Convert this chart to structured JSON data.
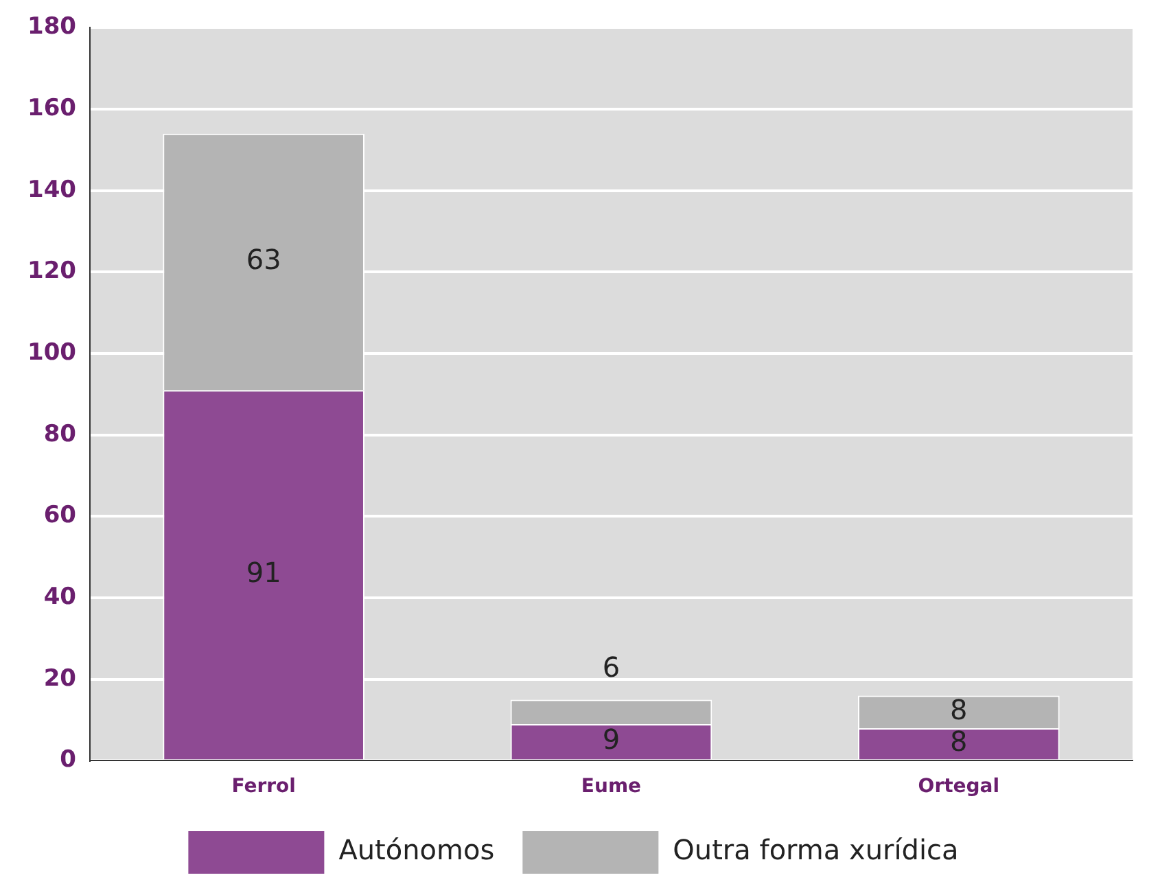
{
  "chart_data": {
    "type": "bar",
    "stacked": true,
    "categories": [
      "Ferrol",
      "Eume",
      "Ortegal"
    ],
    "series": [
      {
        "name": "Autónomos",
        "color": "#8e4a93",
        "values": [
          91,
          9,
          8
        ]
      },
      {
        "name": "Outra forma xurídica",
        "color": "#b4b4b4",
        "values": [
          63,
          6,
          8
        ]
      }
    ],
    "ylim": [
      0,
      180
    ],
    "yticks": [
      0,
      20,
      40,
      60,
      80,
      100,
      120,
      140,
      160,
      180
    ],
    "grid": "y",
    "legend": "bottom",
    "data_labels": true
  }
}
